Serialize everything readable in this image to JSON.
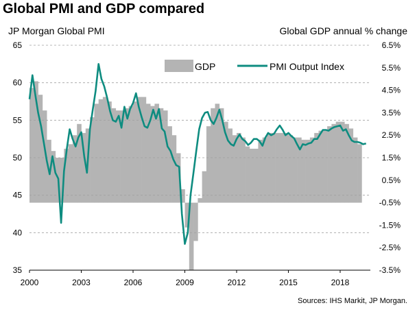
{
  "chart_data": {
    "type": "bar+line",
    "title": "Global PMI and GDP compared",
    "left_axis": {
      "label": "JP Morgan Global  PMI",
      "range": [
        35,
        65
      ],
      "ticks": [
        "35",
        "40",
        "45",
        "50",
        "55",
        "60",
        "65"
      ]
    },
    "right_axis": {
      "label": "Global  GDP annual % change",
      "range": [
        -3.5,
        6.5
      ],
      "ticks": [
        "-3.5%",
        "-2.5%",
        "-1.5%",
        "-0.5%",
        "0.5%",
        "1.5%",
        "2.5%",
        "3.5%",
        "4.5%",
        "5.5%",
        "6.5%"
      ]
    },
    "x_axis": {
      "range": [
        2000,
        2019.75
      ],
      "ticks": [
        "2000",
        "2003",
        "2006",
        "2009",
        "2012",
        "2015",
        "2018"
      ]
    },
    "grid": "horizontal dashed",
    "legend_position": "top-right",
    "legend": [
      "GDP",
      "PMI Output Index"
    ],
    "colors": {
      "gdp": "#b4b4b4",
      "pmi": "#0e8c80",
      "grid": "#a0a0a0"
    },
    "gdp": {
      "name": "GDP",
      "x": [
        2000.0,
        2000.25,
        2000.5,
        2000.75,
        2001.0,
        2001.25,
        2001.5,
        2001.75,
        2002.0,
        2002.25,
        2002.5,
        2002.75,
        2003.0,
        2003.25,
        2003.5,
        2003.75,
        2004.0,
        2004.25,
        2004.5,
        2004.75,
        2005.0,
        2005.25,
        2005.5,
        2005.75,
        2006.0,
        2006.25,
        2006.5,
        2006.75,
        2007.0,
        2007.25,
        2007.5,
        2007.75,
        2008.0,
        2008.25,
        2008.5,
        2008.75,
        2009.0,
        2009.25,
        2009.5,
        2009.75,
        2010.0,
        2010.25,
        2010.5,
        2010.75,
        2011.0,
        2011.25,
        2011.5,
        2011.75,
        2012.0,
        2012.25,
        2012.5,
        2012.75,
        2013.0,
        2013.25,
        2013.5,
        2013.75,
        2014.0,
        2014.25,
        2014.5,
        2014.75,
        2015.0,
        2015.25,
        2015.5,
        2015.75,
        2016.0,
        2016.25,
        2016.5,
        2016.75,
        2017.0,
        2017.25,
        2017.5,
        2017.75,
        2018.0,
        2018.25,
        2018.5,
        2018.75,
        2019.0
      ],
      "values": [
        4.6,
        4.9,
        4.3,
        3.6,
        2.3,
        1.8,
        1.5,
        1.5,
        1.9,
        2.1,
        2.5,
        3.0,
        2.6,
        2.8,
        3.3,
        3.9,
        4.1,
        4.2,
        4.0,
        3.7,
        3.6,
        3.6,
        3.7,
        3.8,
        4.0,
        4.2,
        4.2,
        3.9,
        3.8,
        3.9,
        3.7,
        3.6,
        2.9,
        2.5,
        1.7,
        0.1,
        -1.6,
        -3.5,
        -2.2,
        -0.3,
        0.9,
        2.9,
        3.7,
        3.9,
        3.7,
        3.1,
        2.8,
        2.5,
        2.6,
        2.4,
        2.0,
        1.9,
        1.9,
        2.3,
        2.4,
        2.6,
        2.6,
        2.6,
        2.6,
        2.6,
        2.5,
        2.4,
        2.4,
        2.3,
        2.3,
        2.4,
        2.6,
        2.7,
        2.7,
        2.9,
        3.0,
        3.1,
        3.1,
        3.0,
        2.8,
        2.4,
        2.1
      ]
    },
    "pmi": {
      "name": "PMI Output Index",
      "x": [
        2000.0,
        2000.17,
        2000.33,
        2000.5,
        2000.67,
        2000.83,
        2001.0,
        2001.17,
        2001.33,
        2001.5,
        2001.67,
        2001.83,
        2002.0,
        2002.17,
        2002.33,
        2002.5,
        2002.67,
        2002.83,
        2003.0,
        2003.17,
        2003.33,
        2003.5,
        2003.67,
        2003.83,
        2004.0,
        2004.17,
        2004.33,
        2004.5,
        2004.67,
        2004.83,
        2005.0,
        2005.17,
        2005.33,
        2005.5,
        2005.67,
        2005.83,
        2006.0,
        2006.17,
        2006.33,
        2006.5,
        2006.67,
        2006.83,
        2007.0,
        2007.17,
        2007.33,
        2007.5,
        2007.67,
        2007.83,
        2008.0,
        2008.17,
        2008.33,
        2008.5,
        2008.67,
        2008.83,
        2009.0,
        2009.17,
        2009.33,
        2009.5,
        2009.67,
        2009.83,
        2010.0,
        2010.17,
        2010.33,
        2010.5,
        2010.67,
        2010.83,
        2011.0,
        2011.17,
        2011.33,
        2011.5,
        2011.67,
        2011.83,
        2012.0,
        2012.17,
        2012.33,
        2012.5,
        2012.67,
        2012.83,
        2013.0,
        2013.17,
        2013.33,
        2013.5,
        2013.67,
        2013.83,
        2014.0,
        2014.17,
        2014.33,
        2014.5,
        2014.67,
        2014.83,
        2015.0,
        2015.17,
        2015.33,
        2015.5,
        2015.67,
        2015.83,
        2016.0,
        2016.17,
        2016.33,
        2016.5,
        2016.67,
        2016.83,
        2017.0,
        2017.17,
        2017.33,
        2017.5,
        2017.67,
        2017.83,
        2018.0,
        2018.17,
        2018.33,
        2018.5,
        2018.67,
        2018.83,
        2019.0,
        2019.17,
        2019.33,
        2019.5
      ],
      "values": [
        57.8,
        61.0,
        58.5,
        56.0,
        54.2,
        52.0,
        49.6,
        47.8,
        50.2,
        48.0,
        47.2,
        41.3,
        48.2,
        51.3,
        53.8,
        52.5,
        51.5,
        52.7,
        53.4,
        50.2,
        48.0,
        53.8,
        56.5,
        58.9,
        62.5,
        60.5,
        59.5,
        58.0,
        56.2,
        55.0,
        54.8,
        55.6,
        54.0,
        56.8,
        55.2,
        56.5,
        57.3,
        58.6,
        56.8,
        55.4,
        54.2,
        54.0,
        55.0,
        56.4,
        55.2,
        56.5,
        53.9,
        53.5,
        51.5,
        50.9,
        49.8,
        49.0,
        48.8,
        42.5,
        38.5,
        40.0,
        45.0,
        48.0,
        51.0,
        53.8,
        55.3,
        56.0,
        56.1,
        55.0,
        54.5,
        55.3,
        56.4,
        55.0,
        53.4,
        52.3,
        51.8,
        51.6,
        52.5,
        53.1,
        52.5,
        52.2,
        51.7,
        52.0,
        52.5,
        52.5,
        52.2,
        51.6,
        52.7,
        53.3,
        53.0,
        53.2,
        53.8,
        54.3,
        53.7,
        53.0,
        53.3,
        52.9,
        52.6,
        51.8,
        51.1,
        51.8,
        51.7,
        51.9,
        52.0,
        52.5,
        52.5,
        53.1,
        53.7,
        53.7,
        53.6,
        53.9,
        54.1,
        54.2,
        54.3,
        53.6,
        53.8,
        53.0,
        52.3,
        52.1,
        52.1,
        52.0,
        51.8,
        51.9
      ]
    },
    "source": "Sources: IHS Markit, JP Morgan."
  }
}
